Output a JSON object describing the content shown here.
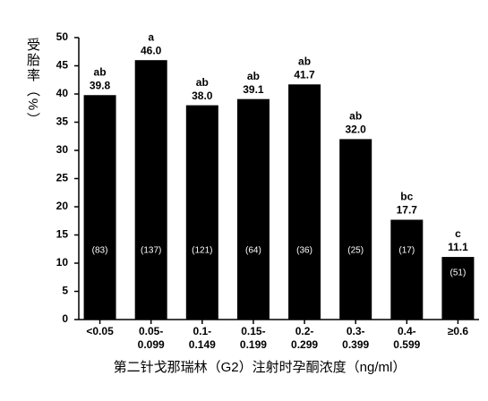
{
  "chart_data": {
    "type": "bar",
    "y_label": "受胎率（%）",
    "x_label": "第二针戈那瑞林（G2）注射时孕酮浓度（ng/ml）",
    "categories": [
      [
        "<0.05"
      ],
      [
        "0.05-",
        "0.099"
      ],
      [
        "0.1-",
        "0.149"
      ],
      [
        "0.15-",
        "0.199"
      ],
      [
        "0.2-",
        "0.299"
      ],
      [
        "0.3-",
        "0.399"
      ],
      [
        "0.4-",
        "0.599"
      ],
      [
        "≥0.6"
      ]
    ],
    "values": [
      39.8,
      46.0,
      38.0,
      39.1,
      41.7,
      32.0,
      17.7,
      11.1
    ],
    "value_labels": [
      "39.8",
      "46.0",
      "38.0",
      "39.1",
      "41.7",
      "32.0",
      "17.7",
      "11.1"
    ],
    "letters": [
      "ab",
      "a",
      "ab",
      "ab",
      "ab",
      "ab",
      "bc",
      "c"
    ],
    "counts": [
      "(83)",
      "(137)",
      "(121)",
      "(64)",
      "(36)",
      "(25)",
      "(17)",
      "(51)"
    ],
    "color": "#000000",
    "ylim": [
      0,
      50
    ],
    "yticks": [
      0,
      5,
      10,
      15,
      20,
      25,
      30,
      35,
      40,
      45,
      50
    ]
  }
}
